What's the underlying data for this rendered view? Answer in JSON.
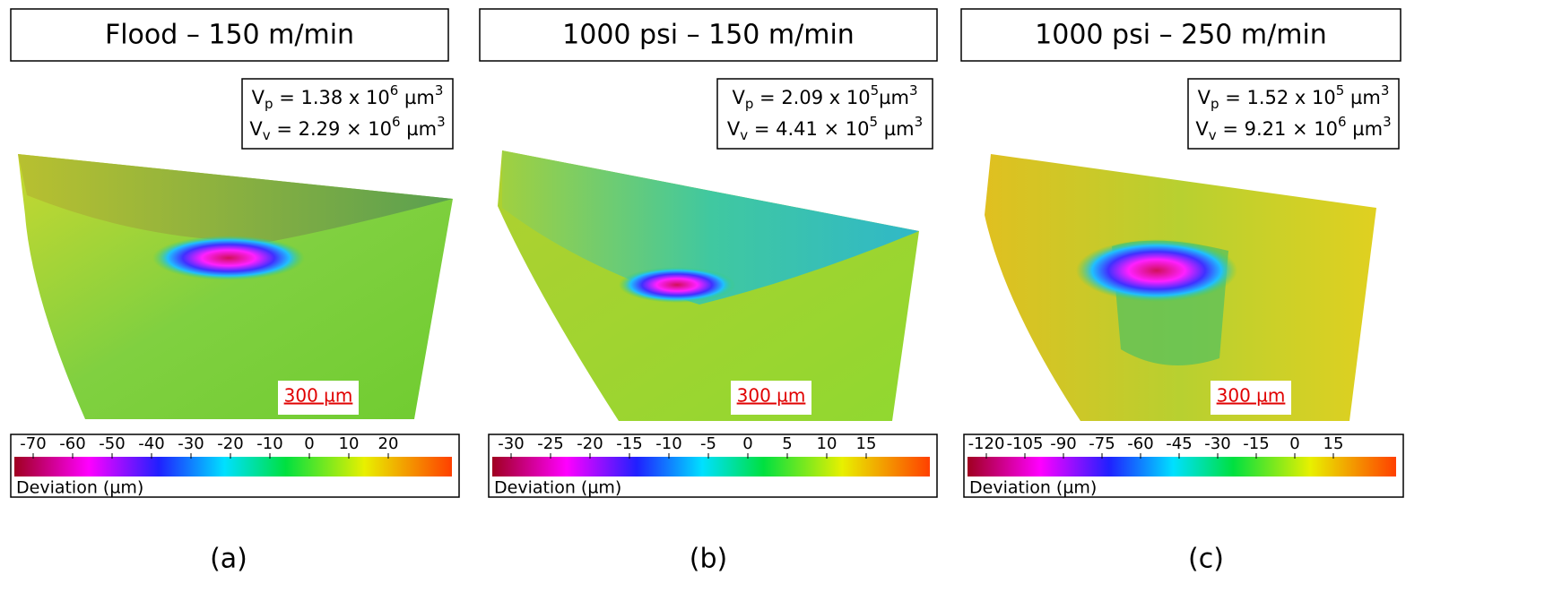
{
  "panels": [
    {
      "title": "Flood – 150 m/min",
      "volumes": [
        {
          "symbol": "V",
          "subscript": "p",
          "text": " = 1.38 x 10",
          "exponent": "6",
          "unit": " µm",
          "unit_exponent": "3"
        },
        {
          "symbol": "V",
          "subscript": "v",
          "text": " = 2.29 × 10",
          "exponent": "6",
          "unit": " µm",
          "unit_exponent": "3"
        }
      ],
      "scale_bar": "300 µm",
      "colorbar": {
        "ticks": [
          -70,
          -60,
          -50,
          -40,
          -30,
          -20,
          -10,
          0,
          10,
          20
        ],
        "label": "Deviation (µm)"
      },
      "caption": "(a)"
    },
    {
      "title": "1000 psi – 150 m/min",
      "volumes": [
        {
          "symbol": "V",
          "subscript": "p",
          "text": " = 2.09 x 10",
          "exponent": "5",
          "unit": "µm",
          "unit_exponent": "3"
        },
        {
          "symbol": "V",
          "subscript": "v",
          "text": " = 4.41 × 10",
          "exponent": "5",
          "unit": " µm",
          "unit_exponent": "3"
        }
      ],
      "scale_bar": "300 µm",
      "colorbar": {
        "ticks": [
          -30,
          -25,
          -20,
          -15,
          -10,
          -5,
          0,
          5,
          10,
          15
        ],
        "label": "Deviation (µm)"
      },
      "caption": "(b)"
    },
    {
      "title": "1000 psi – 250 m/min",
      "volumes": [
        {
          "symbol": "V",
          "subscript": "p",
          "text": " = 1.52 x 10",
          "exponent": "5",
          "unit": " µm",
          "unit_exponent": "3"
        },
        {
          "symbol": "V",
          "subscript": "v",
          "text": " = 9.21 × 10",
          "exponent": "6",
          "unit": " µm",
          "unit_exponent": "3"
        }
      ],
      "scale_bar": "300 µm",
      "colorbar": {
        "ticks": [
          -120,
          -105,
          -90,
          -75,
          -60,
          -45,
          -30,
          -15,
          0,
          15
        ],
        "label": "Deviation (µm)"
      },
      "caption": "(c)"
    }
  ]
}
